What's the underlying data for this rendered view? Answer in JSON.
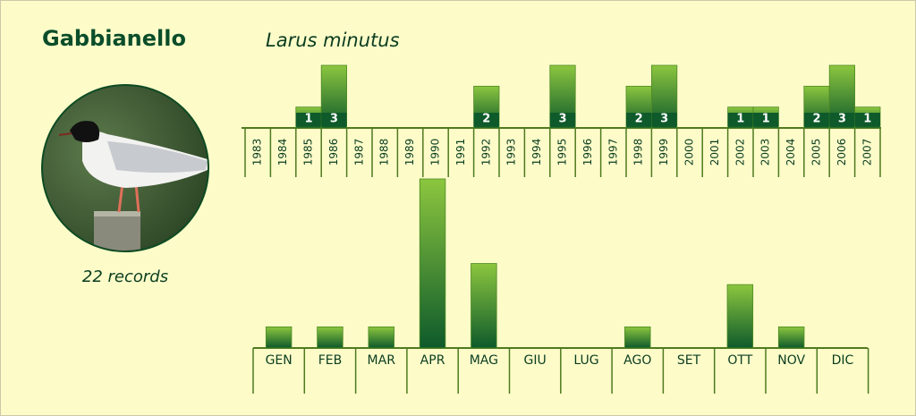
{
  "chart_data": [
    {
      "type": "bar",
      "title": "Gabbianello",
      "subtitle": "Larus minutus",
      "note": "22 records",
      "categories": [
        "1983",
        "1984",
        "1985",
        "1986",
        "1987",
        "1988",
        "1989",
        "1990",
        "1991",
        "1992",
        "1993",
        "1994",
        "1995",
        "1996",
        "1997",
        "1998",
        "1999",
        "2000",
        "2001",
        "2002",
        "2003",
        "2004",
        "2005",
        "2006",
        "2007"
      ],
      "values": [
        0,
        0,
        1,
        3,
        0,
        0,
        0,
        0,
        0,
        2,
        0,
        0,
        3,
        0,
        0,
        2,
        3,
        0,
        0,
        1,
        1,
        0,
        2,
        3,
        1
      ],
      "ylim": [
        0,
        3
      ],
      "color": "#0e5a2b",
      "value_labels_shown": true
    },
    {
      "type": "bar",
      "categories": [
        "GEN",
        "FEB",
        "MAR",
        "APR",
        "MAG",
        "GIU",
        "LUG",
        "AGO",
        "SET",
        "OTT",
        "NOV",
        "DIC"
      ],
      "values": [
        1,
        1,
        1,
        8,
        4,
        0,
        0,
        1,
        0,
        3,
        1,
        0
      ],
      "ylim": [
        0,
        8
      ],
      "color": "#0e5a2b",
      "value_labels_shown": false
    }
  ]
}
